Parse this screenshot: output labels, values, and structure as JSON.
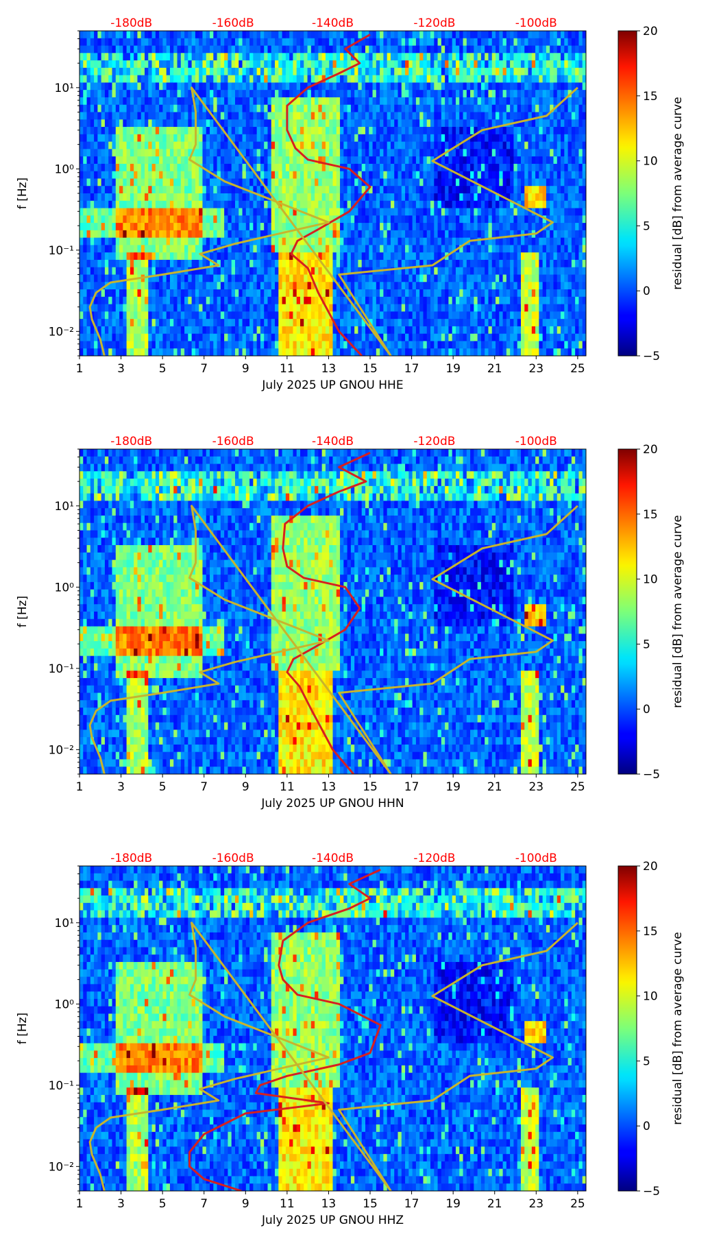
{
  "chart_data": [
    {
      "type": "heatmap",
      "title": "",
      "xlabel": "July 2025 UP GNOU  HHE",
      "ylabel": "f [Hz]",
      "x_ticks": [
        1,
        3,
        5,
        7,
        9,
        11,
        13,
        15,
        17,
        19,
        21,
        23,
        25
      ],
      "xlim": [
        1,
        25.4
      ],
      "ylim": [
        0.005,
        50
      ],
      "y_scale": "log",
      "y_ticks": [
        {
          "value": 0.01,
          "label": "10⁻²"
        },
        {
          "value": 0.1,
          "label": "10⁻¹"
        },
        {
          "value": 1,
          "label": "10⁰"
        },
        {
          "value": 10,
          "label": "10¹"
        }
      ],
      "db_axis": {
        "ticks": [
          {
            "x": 3.5,
            "label": "-180dB"
          },
          {
            "x": 8.4,
            "label": "-160dB"
          },
          {
            "x": 13.2,
            "label": "-140dB"
          },
          {
            "x": 18.1,
            "label": "-120dB"
          },
          {
            "x": 23.0,
            "label": "-100dB"
          }
        ],
        "color": "#ff0000"
      },
      "colorbar": {
        "label": "residual [dB] from average curve",
        "min": -5,
        "max": 20,
        "ticks": [
          -5,
          0,
          5,
          10,
          15,
          20
        ],
        "colormap": "jet"
      },
      "series": [
        {
          "color": "#d62020",
          "points": [
            [
              14.6,
              0.005
            ],
            [
              13.5,
              0.01
            ],
            [
              12.5,
              0.03
            ],
            [
              12.0,
              0.06
            ],
            [
              11.2,
              0.09
            ],
            [
              11.5,
              0.13
            ],
            [
              12.5,
              0.18
            ],
            [
              14.0,
              0.3
            ],
            [
              15.0,
              0.6
            ],
            [
              14.0,
              1.0
            ],
            [
              12.0,
              1.3
            ],
            [
              11.4,
              1.8
            ],
            [
              11.0,
              3
            ],
            [
              11.0,
              6
            ],
            [
              12.0,
              10
            ],
            [
              13.5,
              15
            ],
            [
              14.5,
              20
            ],
            [
              13.8,
              30
            ],
            [
              15.0,
              45
            ]
          ]
        },
        {
          "color": "#c8b42d",
          "points": [
            [
              2.2,
              0.005
            ],
            [
              2.0,
              0.008
            ],
            [
              1.6,
              0.014
            ],
            [
              1.5,
              0.02
            ],
            [
              1.8,
              0.03
            ],
            [
              2.5,
              0.04
            ],
            [
              5.0,
              0.05
            ],
            [
              7.7,
              0.065
            ],
            [
              6.8,
              0.09
            ],
            [
              8.5,
              0.12
            ],
            [
              13.0,
              0.22
            ],
            [
              11.0,
              0.35
            ],
            [
              8.0,
              0.7
            ],
            [
              6.3,
              1.3
            ],
            [
              6.6,
              2
            ],
            [
              6.6,
              5
            ],
            [
              6.4,
              10
            ],
            [
              16.0,
              0.005
            ],
            [
              13.5,
              0.05
            ],
            [
              18.0,
              0.065
            ],
            [
              19.8,
              0.13
            ],
            [
              23.0,
              0.16
            ],
            [
              23.8,
              0.22
            ],
            [
              18.0,
              1.25
            ],
            [
              20.4,
              3
            ],
            [
              23.5,
              4.5
            ],
            [
              25.0,
              10
            ]
          ]
        }
      ]
    },
    {
      "type": "heatmap",
      "title": "",
      "xlabel": "July 2025 UP GNOU  HHN",
      "ylabel": "f [Hz]",
      "x_ticks": [
        1,
        3,
        5,
        7,
        9,
        11,
        13,
        15,
        17,
        19,
        21,
        23,
        25
      ],
      "xlim": [
        1,
        25.4
      ],
      "ylim": [
        0.005,
        50
      ],
      "y_scale": "log",
      "y_ticks": [
        {
          "value": 0.01,
          "label": "10⁻²"
        },
        {
          "value": 0.1,
          "label": "10⁻¹"
        },
        {
          "value": 1,
          "label": "10⁰"
        },
        {
          "value": 10,
          "label": "10¹"
        }
      ],
      "db_axis": {
        "ticks": [
          {
            "x": 3.5,
            "label": "-180dB"
          },
          {
            "x": 8.4,
            "label": "-160dB"
          },
          {
            "x": 13.2,
            "label": "-140dB"
          },
          {
            "x": 18.1,
            "label": "-120dB"
          },
          {
            "x": 23.0,
            "label": "-100dB"
          }
        ],
        "color": "#ff0000"
      },
      "colorbar": {
        "label": "residual [dB] from average curve",
        "min": -5,
        "max": 20,
        "ticks": [
          -5,
          0,
          5,
          10,
          15,
          20
        ],
        "colormap": "jet"
      },
      "series": [
        {
          "color": "#d62020",
          "points": [
            [
              14.2,
              0.005
            ],
            [
              13.2,
              0.01
            ],
            [
              12.2,
              0.03
            ],
            [
              11.6,
              0.06
            ],
            [
              11.0,
              0.09
            ],
            [
              11.3,
              0.13
            ],
            [
              12.3,
              0.18
            ],
            [
              13.8,
              0.3
            ],
            [
              14.5,
              0.55
            ],
            [
              13.8,
              1.0
            ],
            [
              11.8,
              1.3
            ],
            [
              11.0,
              1.8
            ],
            [
              10.8,
              3
            ],
            [
              10.9,
              6
            ],
            [
              12.0,
              10
            ],
            [
              13.5,
              15
            ],
            [
              14.8,
              20
            ],
            [
              13.5,
              30
            ],
            [
              15.0,
              45
            ]
          ]
        },
        {
          "color": "#c8b42d",
          "points": [
            [
              2.2,
              0.005
            ],
            [
              2.0,
              0.008
            ],
            [
              1.6,
              0.014
            ],
            [
              1.5,
              0.02
            ],
            [
              1.8,
              0.03
            ],
            [
              2.5,
              0.04
            ],
            [
              5.0,
              0.05
            ],
            [
              7.7,
              0.065
            ],
            [
              6.8,
              0.09
            ],
            [
              8.5,
              0.12
            ],
            [
              13.0,
              0.22
            ],
            [
              11.0,
              0.35
            ],
            [
              8.0,
              0.7
            ],
            [
              6.3,
              1.3
            ],
            [
              6.6,
              2
            ],
            [
              6.6,
              5
            ],
            [
              6.4,
              10
            ],
            [
              16.0,
              0.005
            ],
            [
              13.5,
              0.05
            ],
            [
              18.0,
              0.065
            ],
            [
              19.8,
              0.13
            ],
            [
              23.0,
              0.16
            ],
            [
              23.8,
              0.22
            ],
            [
              18.0,
              1.25
            ],
            [
              20.4,
              3
            ],
            [
              23.5,
              4.5
            ],
            [
              25.0,
              10
            ]
          ]
        }
      ]
    },
    {
      "type": "heatmap",
      "title": "",
      "xlabel": "July 2025 UP GNOU  HHZ",
      "ylabel": "f [Hz]",
      "x_ticks": [
        1,
        3,
        5,
        7,
        9,
        11,
        13,
        15,
        17,
        19,
        21,
        23,
        25
      ],
      "xlim": [
        1,
        25.4
      ],
      "ylim": [
        0.005,
        50
      ],
      "y_scale": "log",
      "y_ticks": [
        {
          "value": 0.01,
          "label": "10⁻²"
        },
        {
          "value": 0.1,
          "label": "10⁻¹"
        },
        {
          "value": 1,
          "label": "10⁰"
        },
        {
          "value": 10,
          "label": "10¹"
        }
      ],
      "db_axis": {
        "ticks": [
          {
            "x": 3.5,
            "label": "-180dB"
          },
          {
            "x": 8.4,
            "label": "-160dB"
          },
          {
            "x": 13.2,
            "label": "-140dB"
          },
          {
            "x": 18.1,
            "label": "-120dB"
          },
          {
            "x": 23.0,
            "label": "-100dB"
          }
        ],
        "color": "#ff0000"
      },
      "colorbar": {
        "label": "residual [dB] from average curve",
        "min": -5,
        "max": 20,
        "ticks": [
          -5,
          0,
          5,
          10,
          15,
          20
        ],
        "colormap": "jet"
      },
      "series": [
        {
          "color": "#d62020",
          "points": [
            [
              8.8,
              0.005
            ],
            [
              7.0,
              0.007
            ],
            [
              6.3,
              0.01
            ],
            [
              6.3,
              0.015
            ],
            [
              7.0,
              0.025
            ],
            [
              9.0,
              0.045
            ],
            [
              13.0,
              0.06
            ],
            [
              9.5,
              0.08
            ],
            [
              9.7,
              0.1
            ],
            [
              11.0,
              0.13
            ],
            [
              13.5,
              0.18
            ],
            [
              15.0,
              0.25
            ],
            [
              15.5,
              0.55
            ],
            [
              13.5,
              1.0
            ],
            [
              11.5,
              1.3
            ],
            [
              10.8,
              2
            ],
            [
              10.6,
              3
            ],
            [
              10.8,
              6
            ],
            [
              12.0,
              10
            ],
            [
              14.0,
              15
            ],
            [
              15.0,
              20
            ],
            [
              14.0,
              30
            ],
            [
              15.5,
              45
            ]
          ]
        },
        {
          "color": "#c8b42d",
          "points": [
            [
              2.2,
              0.005
            ],
            [
              2.0,
              0.008
            ],
            [
              1.6,
              0.014
            ],
            [
              1.5,
              0.02
            ],
            [
              1.8,
              0.03
            ],
            [
              2.5,
              0.04
            ],
            [
              5.0,
              0.05
            ],
            [
              7.7,
              0.065
            ],
            [
              6.8,
              0.09
            ],
            [
              8.5,
              0.12
            ],
            [
              13.0,
              0.22
            ],
            [
              11.0,
              0.35
            ],
            [
              8.0,
              0.7
            ],
            [
              6.3,
              1.3
            ],
            [
              6.6,
              2
            ],
            [
              6.6,
              5
            ],
            [
              6.4,
              10
            ],
            [
              16.0,
              0.005
            ],
            [
              13.5,
              0.05
            ],
            [
              18.0,
              0.065
            ],
            [
              19.8,
              0.13
            ],
            [
              23.0,
              0.16
            ],
            [
              23.8,
              0.22
            ],
            [
              18.0,
              1.25
            ],
            [
              20.4,
              3
            ],
            [
              23.5,
              4.5
            ],
            [
              25.0,
              10
            ]
          ]
        }
      ]
    }
  ]
}
